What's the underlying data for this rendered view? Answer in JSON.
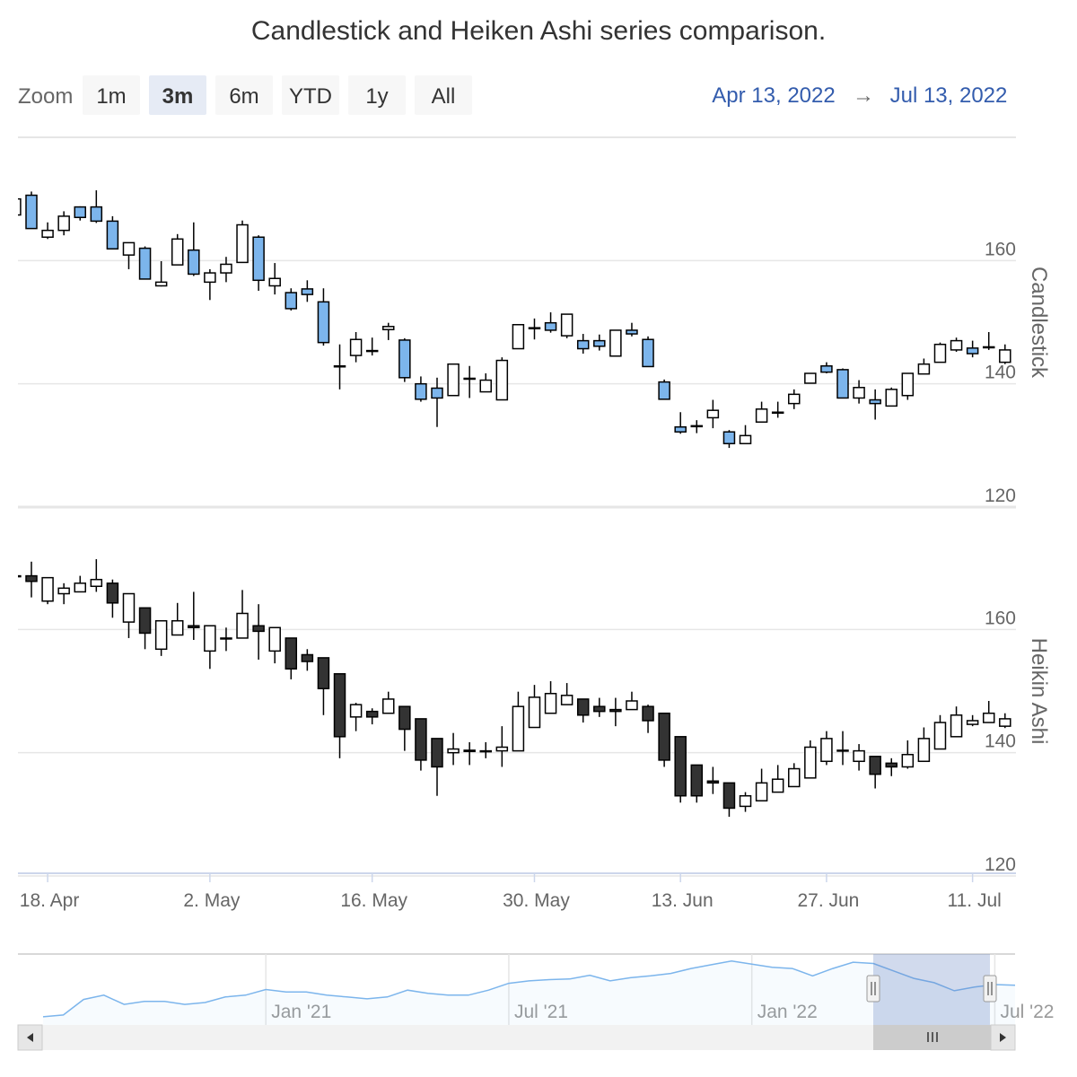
{
  "title": "Candlestick and Heiken Ashi series comparison.",
  "range_selector": {
    "zoom_label": "Zoom",
    "buttons": [
      "1m",
      "3m",
      "6m",
      "YTD",
      "1y",
      "All"
    ],
    "selected": 1,
    "from": "Apr 13, 2022",
    "arrow": "→",
    "to": "Jul 13, 2022"
  },
  "chart_data": [
    {
      "type": "candlestick",
      "y_label": "Candlestick",
      "ylim": [
        120,
        180
      ],
      "yticks": [
        120,
        140,
        160
      ],
      "grid": true,
      "up_color": "#ffffff",
      "down_color": "#7cb5ec",
      "line_color": "#000000",
      "open": [
        167.4,
        170.6,
        163.8,
        164.9,
        168.7,
        168.7,
        166.4,
        160.9,
        162.0,
        155.9,
        159.3,
        161.7,
        156.5,
        158.0,
        159.7,
        163.8,
        155.9,
        154.8,
        155.4,
        153.3,
        142.8,
        144.6,
        145.3,
        148.8,
        147.1,
        140.0,
        139.3,
        138.1,
        140.8,
        138.7,
        137.4,
        145.7,
        149.0,
        149.9,
        147.8,
        147.0,
        147.0,
        144.5,
        148.7,
        147.2,
        140.3,
        133.0,
        133.1,
        134.5,
        132.2,
        130.3,
        133.8,
        135.3,
        136.8,
        140.1,
        142.9,
        142.3,
        137.7,
        137.4,
        136.4,
        138.1,
        141.6,
        143.5,
        145.5,
        145.8,
        145.9,
        143.5
      ],
      "high": [
        170.0,
        171.2,
        166.2,
        168.0,
        168.8,
        171.4,
        167.2,
        162.9,
        162.3,
        159.9,
        164.3,
        166.2,
        158.6,
        160.6,
        166.5,
        164.1,
        159.6,
        155.5,
        156.8,
        155.5,
        146.4,
        148.4,
        147.5,
        149.9,
        147.4,
        141.2,
        141.0,
        143.2,
        142.9,
        141.7,
        144.3,
        149.6,
        150.6,
        151.6,
        151.3,
        148.1,
        148.0,
        148.7,
        149.9,
        147.7,
        140.7,
        135.4,
        134.1,
        137.4,
        132.5,
        133.3,
        137.1,
        137.1,
        139.1,
        141.7,
        143.5,
        142.5,
        140.6,
        139.1,
        139.4,
        141.7,
        144.1,
        146.7,
        147.5,
        147.0,
        148.4,
        146.4
      ],
      "low": [
        167.4,
        165.2,
        163.5,
        164.1,
        166.5,
        166.1,
        161.9,
        158.6,
        157.0,
        155.8,
        159.3,
        157.5,
        153.6,
        156.5,
        159.7,
        155.1,
        154.5,
        151.9,
        153.3,
        146.2,
        139.1,
        143.5,
        144.6,
        147.1,
        140.3,
        137.1,
        133.0,
        138.1,
        137.7,
        138.7,
        137.4,
        145.7,
        147.2,
        148.3,
        147.4,
        144.9,
        145.4,
        144.5,
        147.7,
        142.8,
        137.5,
        131.9,
        132.0,
        132.8,
        129.6,
        130.3,
        133.8,
        134.5,
        135.9,
        140.1,
        141.7,
        137.7,
        136.8,
        134.2,
        136.4,
        137.4,
        141.6,
        143.5,
        145.2,
        144.3,
        145.5,
        143.2
      ],
      "close": [
        170.0,
        165.2,
        164.9,
        167.2,
        167.0,
        166.4,
        161.9,
        162.9,
        157.0,
        156.5,
        163.5,
        157.8,
        158.0,
        159.4,
        165.8,
        156.8,
        157.1,
        152.2,
        154.5,
        146.7,
        142.9,
        147.2,
        145.4,
        149.3,
        141.0,
        137.5,
        137.7,
        143.2,
        140.9,
        140.6,
        143.8,
        149.6,
        149.1,
        148.7,
        151.3,
        145.7,
        146.1,
        148.7,
        148.1,
        142.8,
        137.5,
        132.2,
        133.2,
        135.7,
        130.3,
        131.6,
        135.9,
        135.4,
        138.3,
        141.7,
        141.9,
        137.7,
        139.4,
        136.8,
        139.1,
        141.7,
        143.2,
        146.4,
        147.0,
        144.9,
        146.0,
        145.5
      ]
    },
    {
      "type": "heikinashi",
      "y_label": "Heikin Ashi",
      "ylim": [
        120,
        180
      ],
      "yticks": [
        120,
        140,
        160
      ],
      "grid": true,
      "up_color": "#ffffff",
      "down_color": "#333333",
      "line_color": "#000000",
      "categories": [
        null,
        null,
        "18. Apr",
        null,
        null,
        null,
        null,
        null,
        null,
        null,
        null,
        null,
        "2. May",
        null,
        null,
        null,
        null,
        null,
        null,
        null,
        null,
        null,
        "16. May",
        null,
        null,
        null,
        null,
        null,
        null,
        null,
        null,
        null,
        "30. May",
        null,
        null,
        null,
        null,
        null,
        null,
        null,
        null,
        "13. Jun",
        null,
        null,
        null,
        null,
        null,
        null,
        null,
        null,
        "27. Jun",
        null,
        null,
        null,
        null,
        null,
        null,
        null,
        null,
        "11. Jul",
        null,
        null
      ],
      "open": [
        168.7,
        168.7,
        164.6,
        165.8,
        166.1,
        167.0,
        167.5,
        161.2,
        163.5,
        156.8,
        159.1,
        160.6,
        156.5,
        158.5,
        158.6,
        160.6,
        156.5,
        158.6,
        155.9,
        155.4,
        152.8,
        145.8,
        146.7,
        146.4,
        147.5,
        145.5,
        142.3,
        140.0,
        140.2,
        140.2,
        140.3,
        140.3,
        144.1,
        146.4,
        147.8,
        148.7,
        147.5,
        147.0,
        147.0,
        147.5,
        146.4,
        142.6,
        138.0,
        135.4,
        135.1,
        131.3,
        132.2,
        133.6,
        134.5,
        135.9,
        138.6,
        140.3,
        138.6,
        139.4,
        138.3,
        137.7,
        138.6,
        140.6,
        142.6,
        144.6,
        144.9,
        144.3
      ],
      "high": [
        168.9,
        171.0,
        168.4,
        167.5,
        168.7,
        171.4,
        168.1,
        165.8,
        163.5,
        161.4,
        164.3,
        166.1,
        160.6,
        160.3,
        166.4,
        164.1,
        160.3,
        158.6,
        156.8,
        155.4,
        152.8,
        148.1,
        147.2,
        149.9,
        147.5,
        145.5,
        142.3,
        143.2,
        141.7,
        141.7,
        144.3,
        149.9,
        151.0,
        151.6,
        151.3,
        148.7,
        148.9,
        148.9,
        149.9,
        147.8,
        146.4,
        142.6,
        138.0,
        137.7,
        135.1,
        133.6,
        137.4,
        138.0,
        138.3,
        142.0,
        143.5,
        143.5,
        141.4,
        139.4,
        139.1,
        142.0,
        144.1,
        146.1,
        147.5,
        146.1,
        148.4,
        146.4
      ],
      "low": [
        168.5,
        165.2,
        164.1,
        164.1,
        166.1,
        166.1,
        161.9,
        158.6,
        156.8,
        155.7,
        159.1,
        158.3,
        153.6,
        156.5,
        158.6,
        155.1,
        154.5,
        151.9,
        153.3,
        146.1,
        139.1,
        143.5,
        144.6,
        146.4,
        140.3,
        137.1,
        133.0,
        138.0,
        138.0,
        139.1,
        137.7,
        140.3,
        144.1,
        146.4,
        147.8,
        144.9,
        145.8,
        144.3,
        147.0,
        143.2,
        137.7,
        131.9,
        131.9,
        133.3,
        129.6,
        130.4,
        132.2,
        133.6,
        134.5,
        135.9,
        138.0,
        138.0,
        137.1,
        134.2,
        136.2,
        137.4,
        138.6,
        140.6,
        142.6,
        144.3,
        144.9,
        144.0
      ],
      "close": [
        168.7,
        167.8,
        168.4,
        166.7,
        167.5,
        168.1,
        164.3,
        165.8,
        159.4,
        161.4,
        161.4,
        160.3,
        160.6,
        158.6,
        162.6,
        159.7,
        160.3,
        153.6,
        154.8,
        150.4,
        142.6,
        147.8,
        145.8,
        148.7,
        143.8,
        138.8,
        137.7,
        140.6,
        140.4,
        140.3,
        140.9,
        147.5,
        149.0,
        149.6,
        149.3,
        146.1,
        146.7,
        146.7,
        148.4,
        145.2,
        138.8,
        133.0,
        133.0,
        135.1,
        131.0,
        133.0,
        135.1,
        135.7,
        137.4,
        140.9,
        142.3,
        140.4,
        140.3,
        136.5,
        137.7,
        139.7,
        142.3,
        144.9,
        146.1,
        145.2,
        146.4,
        145.5
      ]
    }
  ],
  "navigator": {
    "type": "area",
    "color": "#7cb5ec",
    "ylim": [
      85,
      182
    ],
    "categories": [
      null,
      null,
      null,
      null,
      null,
      null,
      null,
      null,
      null,
      null,
      null,
      "Jan '21",
      null,
      null,
      null,
      null,
      null,
      null,
      null,
      null,
      null,
      null,
      null,
      "Jul '21",
      null,
      null,
      null,
      null,
      null,
      null,
      null,
      null,
      null,
      null,
      null,
      "Jan '22",
      null,
      null,
      null,
      null,
      null,
      null,
      null,
      null,
      null,
      null,
      null,
      "Jul '22",
      null
    ],
    "values": [
      88,
      91,
      116,
      123,
      108,
      113,
      113,
      108,
      111,
      120,
      123,
      132,
      128,
      128,
      123,
      120,
      117,
      120,
      131,
      126,
      123,
      123,
      131,
      142,
      146,
      148,
      149,
      155,
      146,
      151,
      154,
      158,
      166,
      172,
      178,
      173,
      168,
      166,
      154,
      166,
      176,
      174,
      162,
      150,
      143,
      130,
      136,
      140,
      139
    ]
  }
}
